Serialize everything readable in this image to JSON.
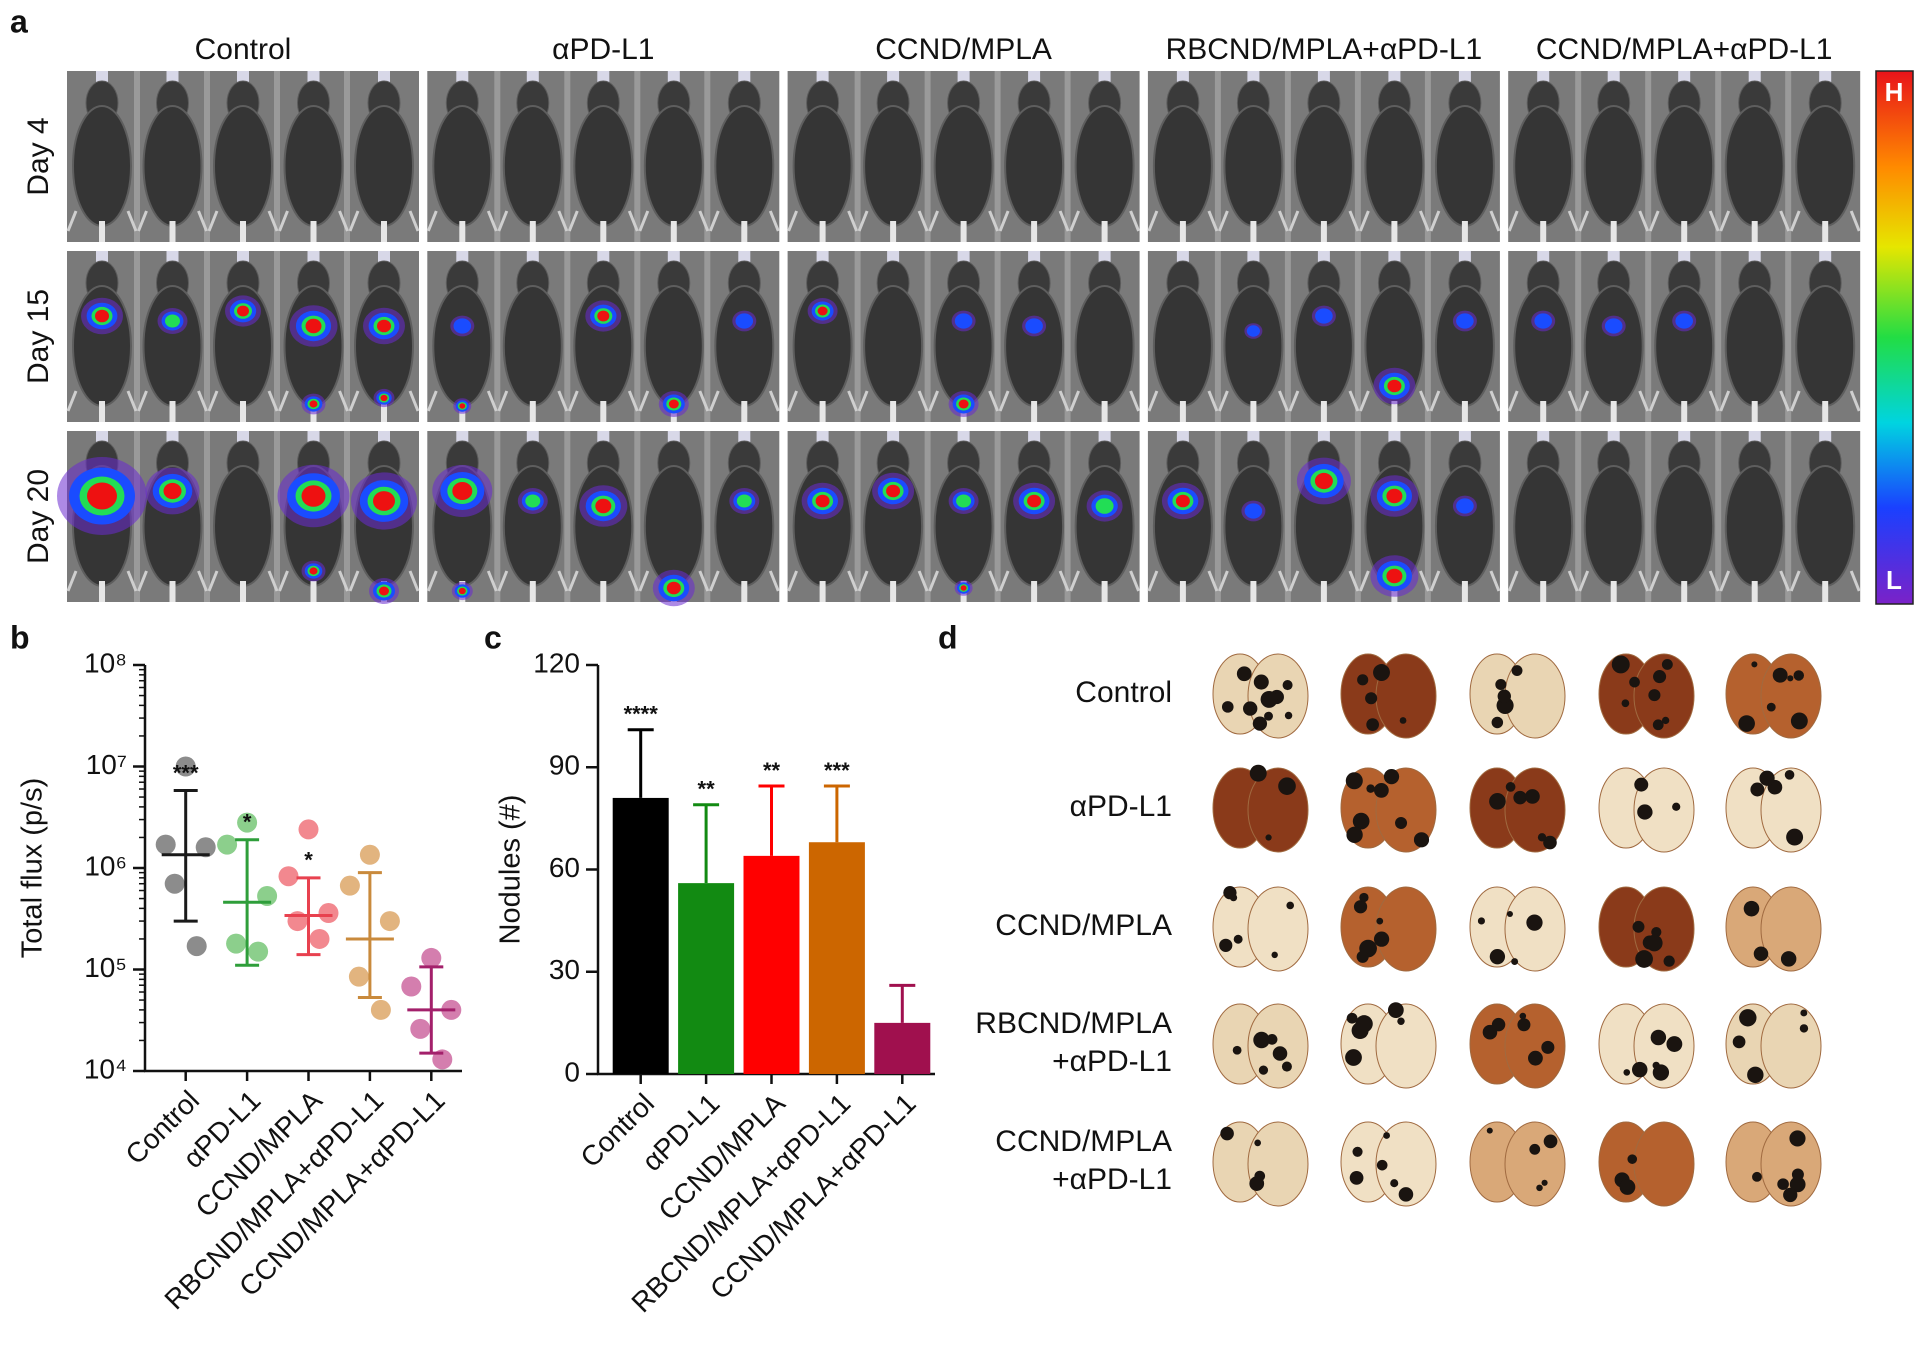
{
  "panels": {
    "a": {
      "letter": "a",
      "columns": [
        "Control",
        "αPD-L1",
        "CCND/MPLA",
        "RBCND/MPLA+αPD-L1",
        "CCND/MPLA+αPD-L1"
      ],
      "rows": [
        "Day 4",
        "Day 15",
        "Day 20"
      ],
      "colorbar": {
        "high": "H",
        "low": "L"
      }
    },
    "d": {
      "letter": "d",
      "rows": [
        [
          "Control"
        ],
        [
          "αPD-L1"
        ],
        [
          "CCND/MPLA"
        ],
        [
          "RBCND/MPLA",
          "+αPD-L1"
        ],
        [
          "CCND/MPLA",
          "+αPD-L1"
        ]
      ]
    }
  },
  "chart_data": [
    {
      "type": "scatter",
      "letter": "b",
      "ylabel": "Total flux (p/s)",
      "log_y": true,
      "categories": [
        "Control",
        "αPD-L1",
        "CCND/MPLA",
        "RBCND/MPLA+αPD-L1",
        "CCND/MPLA+αPD-L1"
      ],
      "ylim": [
        10000,
        100000000
      ],
      "yticks": [
        {
          "value": 10000,
          "label": "10⁴"
        },
        {
          "value": 100000,
          "label": "10⁵"
        },
        {
          "value": 1000000,
          "label": "10⁶"
        },
        {
          "value": 10000000,
          "label": "10⁷"
        },
        {
          "value": 100000000,
          "label": "10⁸"
        }
      ],
      "groups": [
        {
          "color": "#1a1a1a",
          "point_color": "#8c8c8c",
          "values": [
            10000000,
            1700000,
            1600000,
            700000,
            170000
          ],
          "mean": 1350000,
          "lower": 300000,
          "upper": 5800000
        },
        {
          "color": "#2e9e3a",
          "point_color": "#8ccf8c",
          "values": [
            2800000,
            1700000,
            530000,
            180000,
            150000
          ],
          "mean": 460000,
          "lower": 110000,
          "upper": 1900000
        },
        {
          "color": "#e8414f",
          "point_color": "#f2888f",
          "values": [
            2400000,
            830000,
            360000,
            300000,
            200000
          ],
          "mean": 340000,
          "lower": 140000,
          "upper": 800000
        },
        {
          "color": "#c98a3c",
          "point_color": "#e2b47f",
          "values": [
            1350000,
            670000,
            300000,
            85000,
            40000
          ],
          "mean": 200000,
          "lower": 53000,
          "upper": 900000
        },
        {
          "color": "#a3206b",
          "point_color": "#d47eae",
          "values": [
            130000,
            68000,
            40000,
            26000,
            13000
          ],
          "mean": 40000,
          "lower": 15000,
          "upper": 106000
        }
      ],
      "significance": [
        "***",
        "*",
        "*",
        null,
        null
      ]
    },
    {
      "type": "bar",
      "letter": "c",
      "ylabel": "Nodules (#)",
      "categories": [
        "Control",
        "αPD-L1",
        "CCND/MPLA",
        "RBCND/MPLA+αPD-L1",
        "CCND/MPLA+αPD-L1"
      ],
      "values": [
        81,
        56,
        64,
        68,
        15
      ],
      "errors": [
        20,
        23,
        20.5,
        16.5,
        11
      ],
      "colors": [
        "#000000",
        "#128a12",
        "#ff0000",
        "#cc6600",
        "#a0104e"
      ],
      "ylim": [
        0,
        120
      ],
      "yticks": [
        0,
        30,
        60,
        90,
        120
      ],
      "significance": [
        "****",
        "**",
        "**",
        "***",
        null
      ]
    }
  ]
}
